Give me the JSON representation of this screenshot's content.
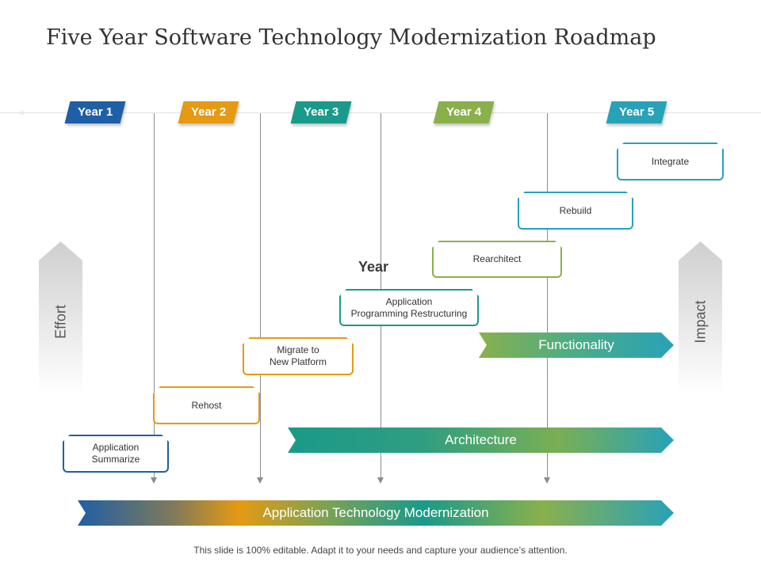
{
  "title": "Five Year Software Technology Modernization Roadmap",
  "colors": {
    "year1": "#1f5fa6",
    "year2": "#e59a13",
    "year3": "#1a9a8a",
    "year4": "#8ab04c",
    "year5": "#27a2b8",
    "connector": "#8c8c8c"
  },
  "years": [
    {
      "label": "Year 1"
    },
    {
      "label": "Year 2"
    },
    {
      "label": "Year 3"
    },
    {
      "label": "Year 4"
    },
    {
      "label": "Year 5"
    }
  ],
  "steps": [
    {
      "label": "Application\nSummarize"
    },
    {
      "label": "Rehost"
    },
    {
      "label": "Migrate to\nNew Platform"
    },
    {
      "label": "Application\nProgramming Restructuring"
    },
    {
      "label": "Rearchitect"
    },
    {
      "label": "Rebuild"
    },
    {
      "label": "Integrate"
    }
  ],
  "center_label": "Year",
  "side_left": "Effort",
  "side_right": "Impact",
  "bands": {
    "functionality": "Functionality",
    "architecture": "Architecture",
    "modernization": "Application Technology Modernization"
  },
  "footer": "This slide is 100% editable. Adapt it to your needs and capture your audience’s attention."
}
